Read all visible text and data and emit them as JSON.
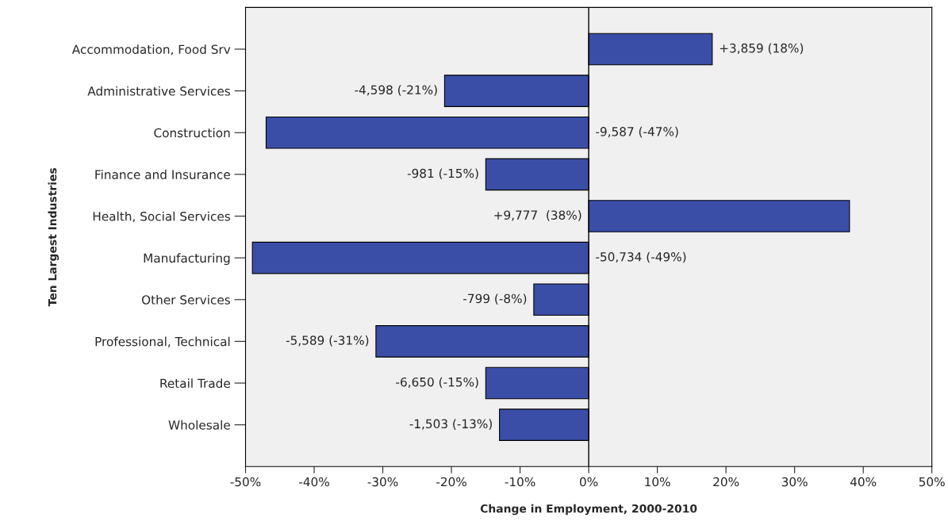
{
  "chart_data": {
    "type": "bar",
    "orientation": "horizontal",
    "xlabel": "Change in Employment, 2000-2010",
    "ylabel": "Ten Largest Industries",
    "categories": [
      "Accommodation, Food Srv",
      "Administrative Services",
      "Construction",
      "Finance and Insurance",
      "Health, Social Services",
      "Manufacturing",
      "Other Services",
      "Professional, Technical",
      "Retail Trade",
      "Wholesale"
    ],
    "values": [
      18,
      -21,
      -47,
      -15,
      38,
      -49,
      -8,
      -31,
      -15,
      -13
    ],
    "value_labels": [
      "+3,859 (18%)",
      "-4,598 (-21%)",
      "-9,587 (-47%)",
      "-981 (-15%)",
      "+9,777  (38%)",
      "-50,734 (-49%)",
      "-799 (-8%)",
      "-5,589 (-31%)",
      "-6,650 (-15%)",
      "-1,503 (-13%)"
    ],
    "color": "#3a4ea8",
    "xlim": [
      -50,
      50
    ],
    "xticks": [
      {
        "value": -50,
        "label": "-50%"
      },
      {
        "value": -40,
        "label": "-40%"
      },
      {
        "value": -30,
        "label": "-30%"
      },
      {
        "value": -20,
        "label": "-20%"
      },
      {
        "value": -10,
        "label": "-10%"
      },
      {
        "value": 0,
        "label": "0%"
      },
      {
        "value": 10,
        "label": "10%"
      },
      {
        "value": 20,
        "label": "20%"
      },
      {
        "value": 30,
        "label": "30%"
      },
      {
        "value": 40,
        "label": "40%"
      },
      {
        "value": 50,
        "label": "50%"
      }
    ],
    "ref_lines": [
      {
        "axis": "x",
        "value": 0,
        "color": "#000000"
      }
    ],
    "grid": false,
    "legend": false
  }
}
